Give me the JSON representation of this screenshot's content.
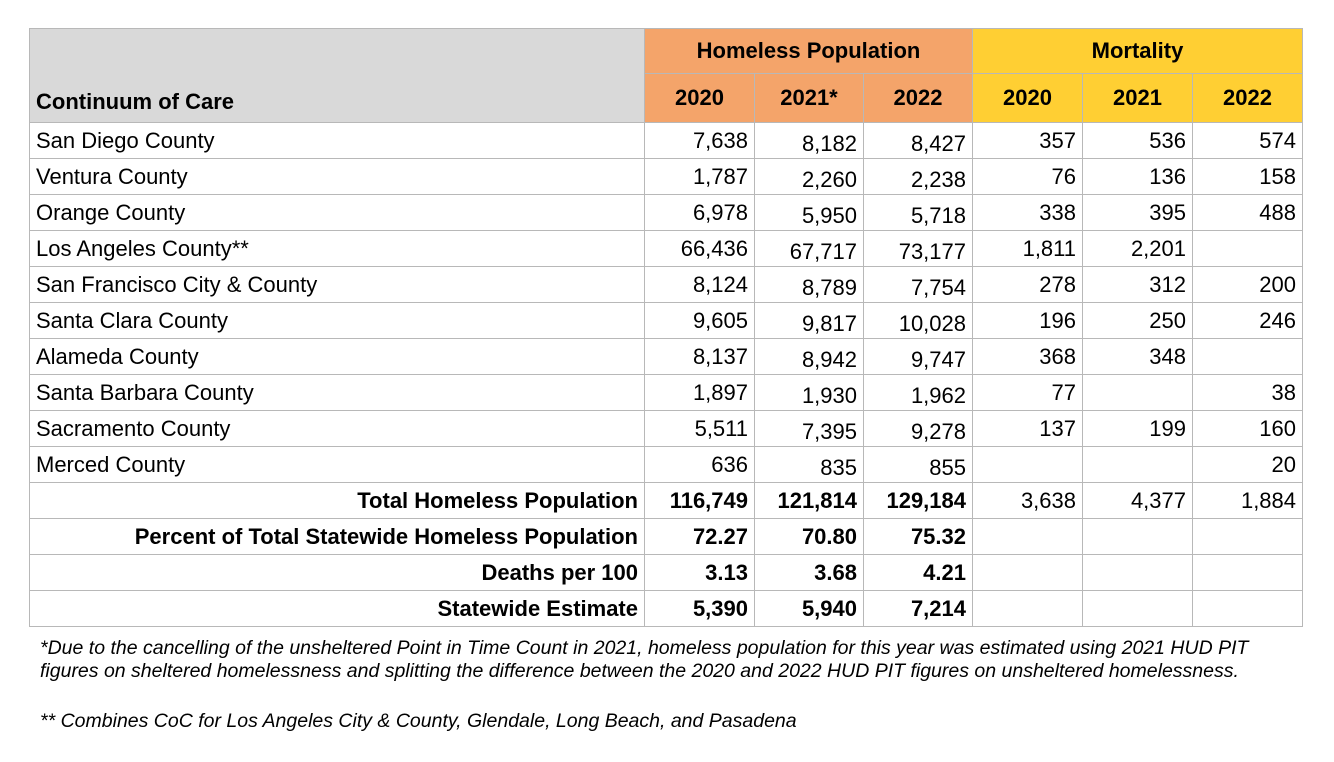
{
  "table": {
    "groups": {
      "homeless": "Homeless Population",
      "mortality": "Mortality"
    },
    "first_col_header": "Continuum of Care",
    "years": [
      "2020",
      "2021*",
      "2022",
      "2020",
      "2021",
      "2022"
    ],
    "rows": [
      {
        "name": "San Diego County",
        "values": [
          "7,638",
          "8,182",
          "8,427",
          "357",
          "536",
          "574"
        ]
      },
      {
        "name": "Ventura County",
        "values": [
          "1,787",
          "2,260",
          "2,238",
          "76",
          "136",
          "158"
        ]
      },
      {
        "name": "Orange County",
        "values": [
          "6,978",
          "5,950",
          "5,718",
          "338",
          "395",
          "488"
        ]
      },
      {
        "name": "Los Angeles County**",
        "values": [
          "66,436",
          "67,717",
          "73,177",
          "1,811",
          "2,201",
          ""
        ]
      },
      {
        "name": "San Francisco City & County",
        "values": [
          "8,124",
          "8,789",
          "7,754",
          "278",
          "312",
          "200"
        ]
      },
      {
        "name": "Santa Clara County",
        "values": [
          "9,605",
          "9,817",
          "10,028",
          "196",
          "250",
          "246"
        ]
      },
      {
        "name": "Alameda County",
        "values": [
          "8,137",
          "8,942",
          "9,747",
          "368",
          "348",
          ""
        ]
      },
      {
        "name": "Santa Barbara County",
        "values": [
          "1,897",
          "1,930",
          "1,962",
          "77",
          "",
          "38"
        ]
      },
      {
        "name": "Sacramento County",
        "values": [
          "5,511",
          "7,395",
          "9,278",
          "137",
          "199",
          "160"
        ]
      },
      {
        "name": "Merced County",
        "values": [
          "636",
          "835",
          "855",
          "",
          "",
          "20"
        ]
      }
    ],
    "summary": [
      {
        "label": "Total Homeless Population",
        "values": [
          "116,749",
          "121,814",
          "129,184",
          "3,638",
          "4,377",
          "1,884"
        ]
      },
      {
        "label": "Percent of Total Statewide Homeless Population",
        "values": [
          "72.27",
          "70.80",
          "75.32",
          "",
          "",
          ""
        ]
      },
      {
        "label": "Deaths per 100",
        "values": [
          "3.13",
          "3.68",
          "4.21",
          "",
          "",
          ""
        ]
      },
      {
        "label": "Statewide Estimate",
        "values": [
          "5,390",
          "5,940",
          "7,214",
          "",
          "",
          ""
        ]
      }
    ]
  },
  "footnotes": {
    "note1": "*Due to the cancelling of the unsheltered Point in Time Count in 2021, homeless population for this year was estimated using 2021 HUD PIT figures on sheltered homelessness and splitting the difference between the 2020 and 2022 HUD PIT figures on unsheltered homelessness.",
    "note2": "** Combines CoC for Los Angeles City & County, Glendale, Long Beach, and Pasadena"
  }
}
